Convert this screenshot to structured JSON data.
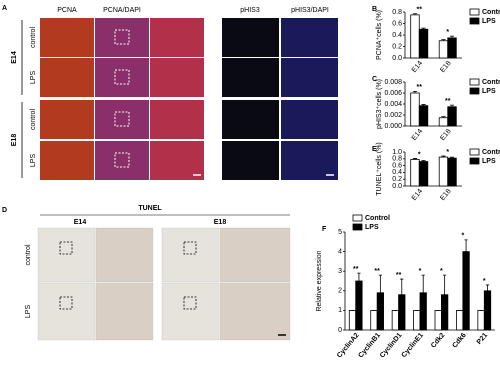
{
  "figure_a": {
    "label": "A",
    "columns": [
      "PCNA",
      "PCNA/DAPI",
      "pHIS3",
      "pHIS3/DAPI"
    ],
    "groups": [
      "E14",
      "E18"
    ],
    "rows": [
      "control",
      "LPS",
      "control",
      "LPS"
    ]
  },
  "figure_d": {
    "label": "D",
    "title": "TUNEL",
    "columns": [
      "E14",
      "E18"
    ],
    "rows": [
      "control",
      "LPS"
    ]
  },
  "chart_data": [
    {
      "label": "B",
      "type": "bar",
      "y_label": "PCNA⁺cells (%)",
      "categories": [
        "E14",
        "E18"
      ],
      "series": [
        {
          "name": "Control",
          "color": "#ffffff",
          "values": [
            0.75,
            0.3
          ],
          "errors": [
            0.02,
            0.02
          ]
        },
        {
          "name": "LPS",
          "color": "#000000",
          "values": [
            0.5,
            0.35
          ],
          "errors": [
            0.02,
            0.03
          ]
        }
      ],
      "annotations": [
        "**",
        "*"
      ],
      "edgecolor": "#000000",
      "ylim": [
        0,
        0.8
      ],
      "yticks": [
        {
          "value": 0,
          "label": "0.0"
        },
        {
          "value": 0.2,
          "label": "0.2"
        },
        {
          "value": 0.4,
          "label": "0.4"
        },
        {
          "value": 0.6,
          "label": "0.6"
        },
        {
          "value": 0.8,
          "label": "0.8"
        }
      ],
      "legend": "right"
    },
    {
      "label": "C",
      "type": "bar",
      "y_label": "pHIS3⁺cells (%)",
      "categories": [
        "E14",
        "E18"
      ],
      "series": [
        {
          "name": "Control",
          "color": "#ffffff",
          "values": [
            0.006,
            0.0015
          ],
          "errors": [
            0.0003,
            0.0002
          ]
        },
        {
          "name": "LPS",
          "color": "#000000",
          "values": [
            0.0037,
            0.0035
          ],
          "errors": [
            0.0002,
            0.0003
          ]
        }
      ],
      "annotations": [
        "**",
        "**"
      ],
      "edgecolor": "#000000",
      "ylim": [
        0,
        0.008
      ],
      "yticks": [
        {
          "value": 0,
          "label": "0.000"
        },
        {
          "value": 0.002,
          "label": "0.002"
        },
        {
          "value": 0.004,
          "label": "0.004"
        },
        {
          "value": 0.006,
          "label": "0.006"
        },
        {
          "value": 0.008,
          "label": "0.008"
        }
      ],
      "legend": "right"
    },
    {
      "label": "E",
      "type": "bar",
      "y_label": "TUNEL⁺cells (%)",
      "categories": [
        "E14",
        "E18"
      ],
      "series": [
        {
          "name": "Control",
          "color": "#ffffff",
          "values": [
            0.78,
            0.85
          ],
          "errors": [
            0.03,
            0.03
          ]
        },
        {
          "name": "LPS",
          "color": "#000000",
          "values": [
            0.72,
            0.82
          ],
          "errors": [
            0.03,
            0.03
          ]
        }
      ],
      "annotations": [
        "*",
        "*"
      ],
      "edgecolor": "#000000",
      "ylim": [
        0,
        1
      ],
      "yticks": [
        {
          "value": 0,
          "label": "0.0"
        },
        {
          "value": 0.2,
          "label": "0.2"
        },
        {
          "value": 0.4,
          "label": "0.4"
        },
        {
          "value": 0.6,
          "label": "0.6"
        },
        {
          "value": 0.8,
          "label": "0.8"
        },
        {
          "value": 1,
          "label": "1.0"
        }
      ],
      "legend": "right"
    },
    {
      "label": "F",
      "type": "bar",
      "y_label": "Relative expression",
      "categories": [
        "CyclinA2",
        "CyclinB1",
        "CyclinD1",
        "CyclinE1",
        "Cdk2",
        "Cdk6",
        "P21"
      ],
      "series": [
        {
          "name": "Control",
          "color": "#ffffff",
          "values": [
            1,
            1,
            1,
            1,
            1,
            1,
            1
          ],
          "errors": [
            0,
            0,
            0,
            0,
            0,
            0,
            0
          ]
        },
        {
          "name": "LPS",
          "color": "#000000",
          "values": [
            2.5,
            1.9,
            1.8,
            1.9,
            1.8,
            4.0,
            2.0
          ],
          "errors": [
            0.4,
            0.9,
            0.8,
            0.9,
            1.0,
            0.6,
            0.3
          ]
        }
      ],
      "annotations": [
        "**",
        "**",
        "**",
        "*",
        "*",
        "*",
        "*"
      ],
      "edgecolor": "#000000",
      "ylim": [
        0,
        5
      ],
      "yticks": [
        0,
        1,
        2,
        3,
        4,
        5
      ],
      "legend": "upper left"
    }
  ]
}
